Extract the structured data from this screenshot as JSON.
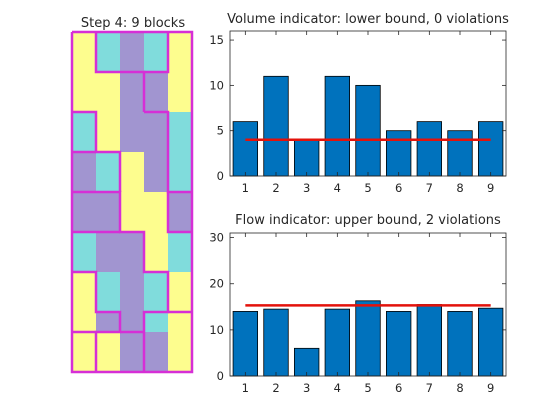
{
  "colors": {
    "background": "#ffffff",
    "bar": "#0072bd",
    "bound_line": "#e3120b",
    "block_border": "#d62fd6",
    "cell_yellow": "#fdfd8e",
    "cell_cyan": "#80dcdc",
    "cell_purple": "#a195d0",
    "axis": "#262626"
  },
  "chart_data": [
    {
      "type": "block-map",
      "title": "Step 4: 9 blocks",
      "grid": {
        "rows": 17,
        "cols": 5
      },
      "color_key": {
        "Y": "yellow",
        "C": "cyan",
        "P": "purple"
      },
      "cells": [
        "YCPCY",
        "YCPCY",
        "YYPPY",
        "YYPPY",
        "CYPPC",
        "CYPPC",
        "PCYPC",
        "PCYPC",
        "PPYYP",
        "PPYYP",
        "CPPYC",
        "CPPYC",
        "YCPCY",
        "YCPCY",
        "YPPCY",
        "YYPPY",
        "YYPPY"
      ],
      "block_count": 9
    },
    {
      "type": "bar",
      "title": "Volume indicator: lower bound, 0 violations",
      "categories": [
        "1",
        "2",
        "3",
        "4",
        "5",
        "6",
        "7",
        "8",
        "9"
      ],
      "values": [
        6,
        11,
        4,
        11,
        10,
        5,
        6,
        5,
        6
      ],
      "bound": 4,
      "ylim": [
        0,
        16
      ],
      "yticks": [
        "0",
        "5",
        "10",
        "15"
      ],
      "ytick_values": [
        0,
        5,
        10,
        15
      ]
    },
    {
      "type": "bar",
      "title": "Flow indicator: upper bound, 2 violations",
      "categories": [
        "1",
        "2",
        "3",
        "4",
        "5",
        "6",
        "7",
        "8",
        "9"
      ],
      "values": [
        14,
        14.5,
        6,
        14.5,
        16.3,
        14,
        15.5,
        14,
        14.7
      ],
      "bound": 15.3,
      "ylim": [
        0,
        31
      ],
      "yticks": [
        "0",
        "10",
        "20",
        "30"
      ],
      "ytick_values": [
        0,
        10,
        20,
        30
      ]
    }
  ]
}
